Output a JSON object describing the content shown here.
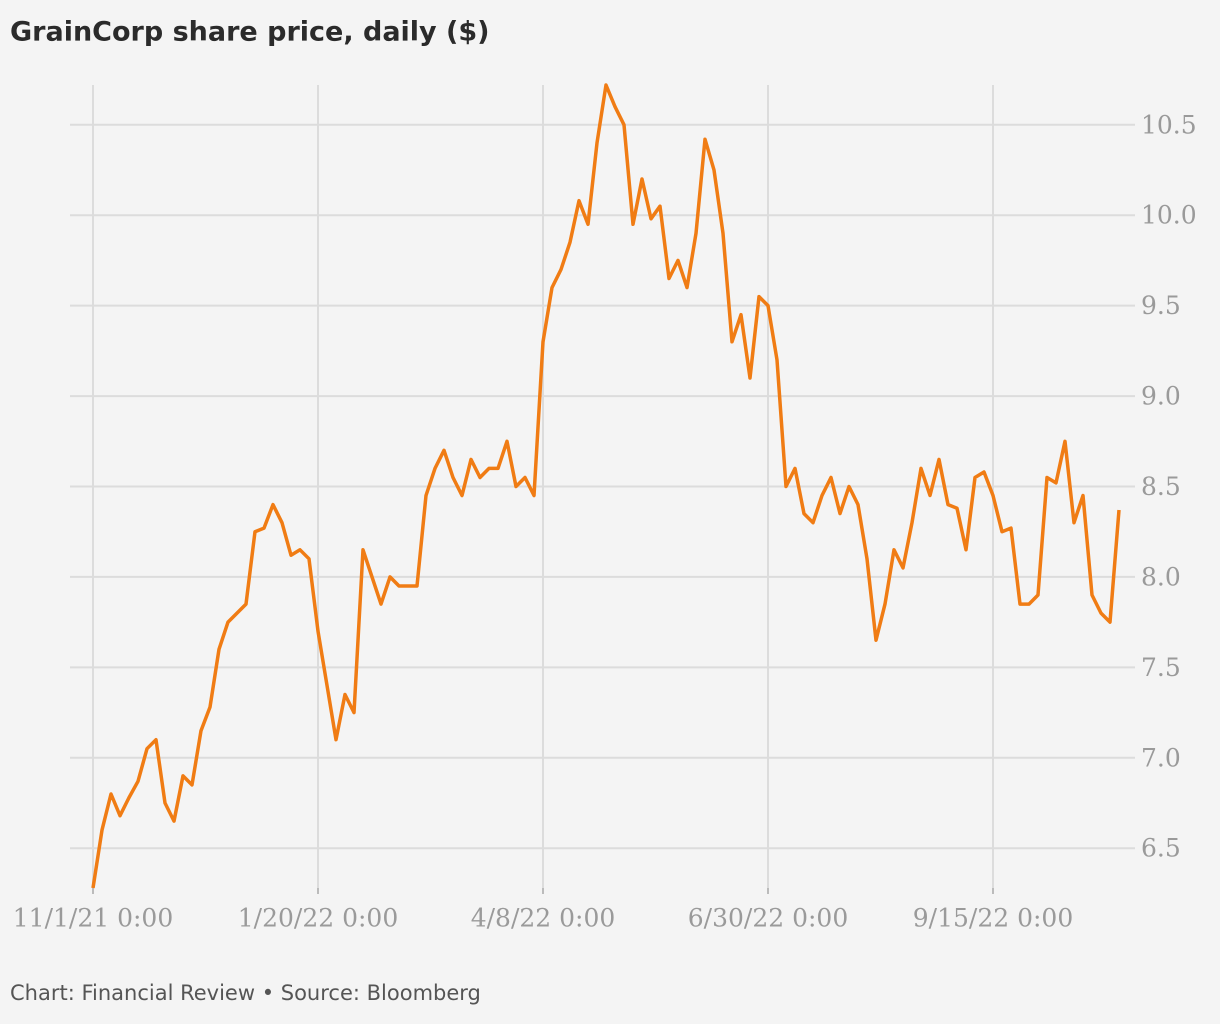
{
  "chart_data": {
    "type": "line",
    "title": "GrainCorp share price, daily ($)",
    "footer": "Chart: Financial Review • Source: Bloomberg",
    "categories": [
      "11/1/21 0:00",
      null,
      null,
      null,
      null,
      null,
      null,
      null,
      null,
      null,
      null,
      null,
      null,
      null,
      null,
      null,
      null,
      null,
      null,
      null,
      null,
      null,
      null,
      null,
      null,
      "1/20/22 0:00",
      null,
      null,
      null,
      null,
      null,
      null,
      null,
      null,
      null,
      null,
      null,
      null,
      null,
      null,
      null,
      null,
      null,
      null,
      null,
      null,
      null,
      null,
      null,
      null,
      "4/8/22 0:00",
      null,
      null,
      null,
      null,
      null,
      null,
      null,
      null,
      null,
      null,
      null,
      null,
      null,
      null,
      null,
      null,
      null,
      null,
      null,
      null,
      null,
      null,
      null,
      null,
      "6/30/22 0:00",
      null,
      null,
      null,
      null,
      null,
      null,
      null,
      null,
      null,
      null,
      null,
      null,
      null,
      null,
      null,
      null,
      null,
      null,
      null,
      null,
      null,
      null,
      null,
      null,
      "9/15/22 0:00",
      null,
      null,
      null,
      null,
      null,
      null,
      null,
      null,
      null,
      null,
      null,
      null,
      null,
      null
    ],
    "values": [
      6.28,
      6.6,
      6.8,
      6.68,
      6.78,
      6.87,
      7.05,
      7.1,
      6.75,
      6.65,
      6.9,
      6.85,
      7.15,
      7.28,
      7.6,
      7.75,
      7.8,
      7.85,
      8.25,
      8.27,
      8.4,
      8.3,
      8.12,
      8.15,
      8.1,
      7.7,
      7.4,
      7.1,
      7.35,
      7.25,
      8.15,
      8.0,
      7.85,
      8.0,
      7.95,
      7.95,
      7.95,
      8.45,
      8.6,
      8.7,
      8.55,
      8.45,
      8.65,
      8.55,
      8.6,
      8.6,
      8.75,
      8.5,
      8.55,
      8.45,
      9.3,
      9.6,
      9.7,
      9.85,
      10.08,
      9.95,
      10.4,
      10.72,
      10.6,
      10.5,
      9.95,
      10.2,
      9.98,
      10.05,
      9.65,
      9.75,
      9.6,
      9.9,
      10.42,
      10.25,
      9.9,
      9.3,
      9.45,
      9.1,
      9.55,
      9.5,
      9.2,
      8.5,
      8.6,
      8.35,
      8.3,
      8.45,
      8.55,
      8.35,
      8.5,
      8.4,
      8.1,
      7.65,
      7.85,
      8.15,
      8.05,
      8.3,
      8.6,
      8.45,
      8.65,
      8.4,
      8.38,
      8.15,
      8.55,
      8.58,
      8.45,
      8.25,
      8.27,
      7.85,
      7.85,
      7.9,
      8.55,
      8.52,
      8.75,
      8.3,
      8.45,
      7.9,
      7.8,
      7.75,
      8.37
    ],
    "color": "#f07c14",
    "ylim": [
      6.28,
      10.72
    ],
    "yticks": [
      6.5,
      {
        "value": 7,
        "label": "7.0"
      },
      7.5,
      {
        "value": 8,
        "label": "8.0"
      },
      8.5,
      {
        "value": 9,
        "label": "9.0"
      },
      9.5,
      {
        "value": 10,
        "label": "10.0"
      },
      10.5
    ],
    "grid": true
  }
}
